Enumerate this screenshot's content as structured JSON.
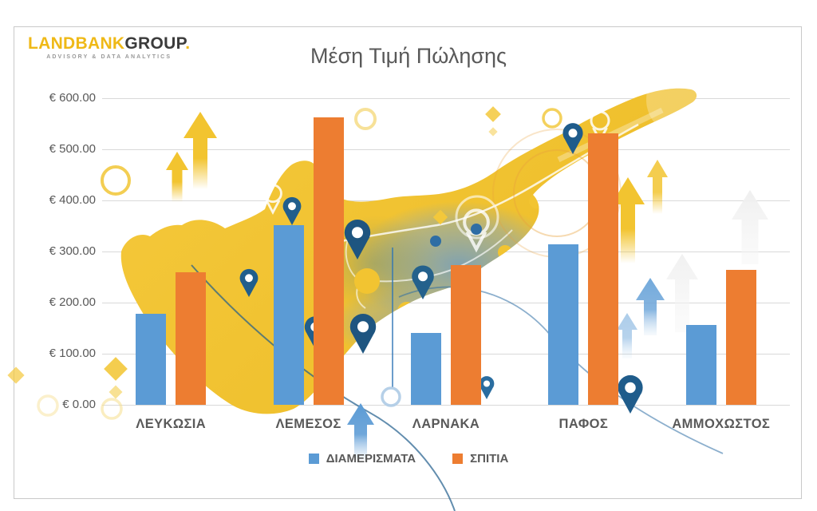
{
  "page": {
    "background": "#FFFFFF",
    "card_border": "#C9C9C9"
  },
  "logo": {
    "primary": "LANDBANK",
    "secondary": "GROUP",
    "dot": ".",
    "tagline": "ADVISORY & DATA ANALYTICS",
    "primary_color": "#EFB917",
    "secondary_color": "#3B3B3B"
  },
  "chart_data": {
    "type": "bar",
    "title": "Μέση Τιμή Πώλησης",
    "title_color": "#595959",
    "categories": [
      "ΛΕΥΚΩΣΙΑ",
      "ΛΕΜΕΣΟΣ",
      "ΛΑΡΝΑΚΑ",
      "ΠΑΦΟΣ",
      "ΑΜΜΟΧΩΣΤΟΣ"
    ],
    "series": [
      {
        "name": "ΔΙΑΜΕΡΙΣΜΑΤΑ",
        "color": "#5B9BD5",
        "values": [
          178,
          352,
          140,
          314,
          156
        ]
      },
      {
        "name": "ΣΠΙΤΙΑ",
        "color": "#ED7D31",
        "values": [
          260,
          562,
          273,
          532,
          264
        ]
      }
    ],
    "yticks": [
      {
        "value": 600,
        "label": "€ 600.00"
      },
      {
        "value": 500,
        "label": "€ 500.00"
      },
      {
        "value": 400,
        "label": "€ 400.00"
      },
      {
        "value": 300,
        "label": "€ 300.00"
      },
      {
        "value": 200,
        "label": "€ 200.00"
      },
      {
        "value": 100,
        "label": "€ 100.00"
      },
      {
        "value": 0,
        "label": "€ 0.00"
      }
    ],
    "ylim": [
      0,
      600
    ],
    "grid": true,
    "gridline_color": "#D9D9D9",
    "axis_text_color": "#595959",
    "legend_position": "bottom",
    "background_illustration": "cyprus-map-with-location-pins-and-growth-arrows"
  }
}
